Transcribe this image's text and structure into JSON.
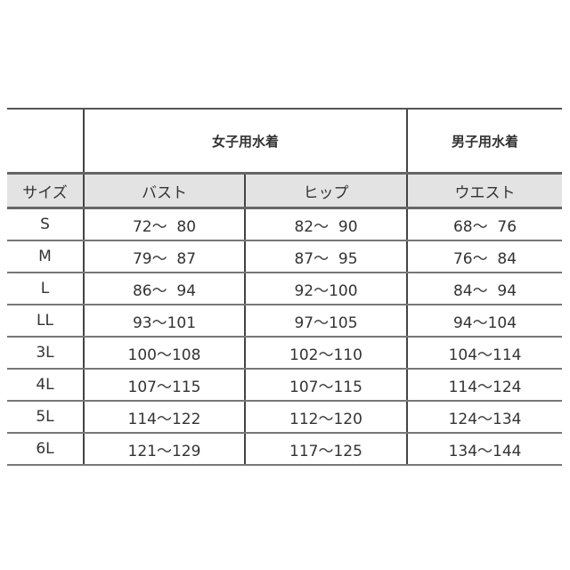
{
  "table": {
    "group_headers": {
      "women": "女子用水着",
      "men": "男子用水着"
    },
    "columns": [
      "サイズ",
      "バスト",
      "ヒップ",
      "ウエスト"
    ],
    "rows": [
      [
        "S",
        "72～  80",
        "82～  90",
        "68～  76"
      ],
      [
        "M",
        "79～  87",
        "87～  95",
        "76～  84"
      ],
      [
        "L",
        "86～  94",
        "92～100",
        "84～  94"
      ],
      [
        "LL",
        "93～101",
        "97～105",
        "94～104"
      ],
      [
        "3L",
        "100～108",
        "102～110",
        "104～114"
      ],
      [
        "4L",
        "107～115",
        "107～115",
        "114～124"
      ],
      [
        "5L",
        "114～122",
        "112～120",
        "124～134"
      ],
      [
        "6L",
        "121～129",
        "117～125",
        "134～144"
      ]
    ]
  }
}
